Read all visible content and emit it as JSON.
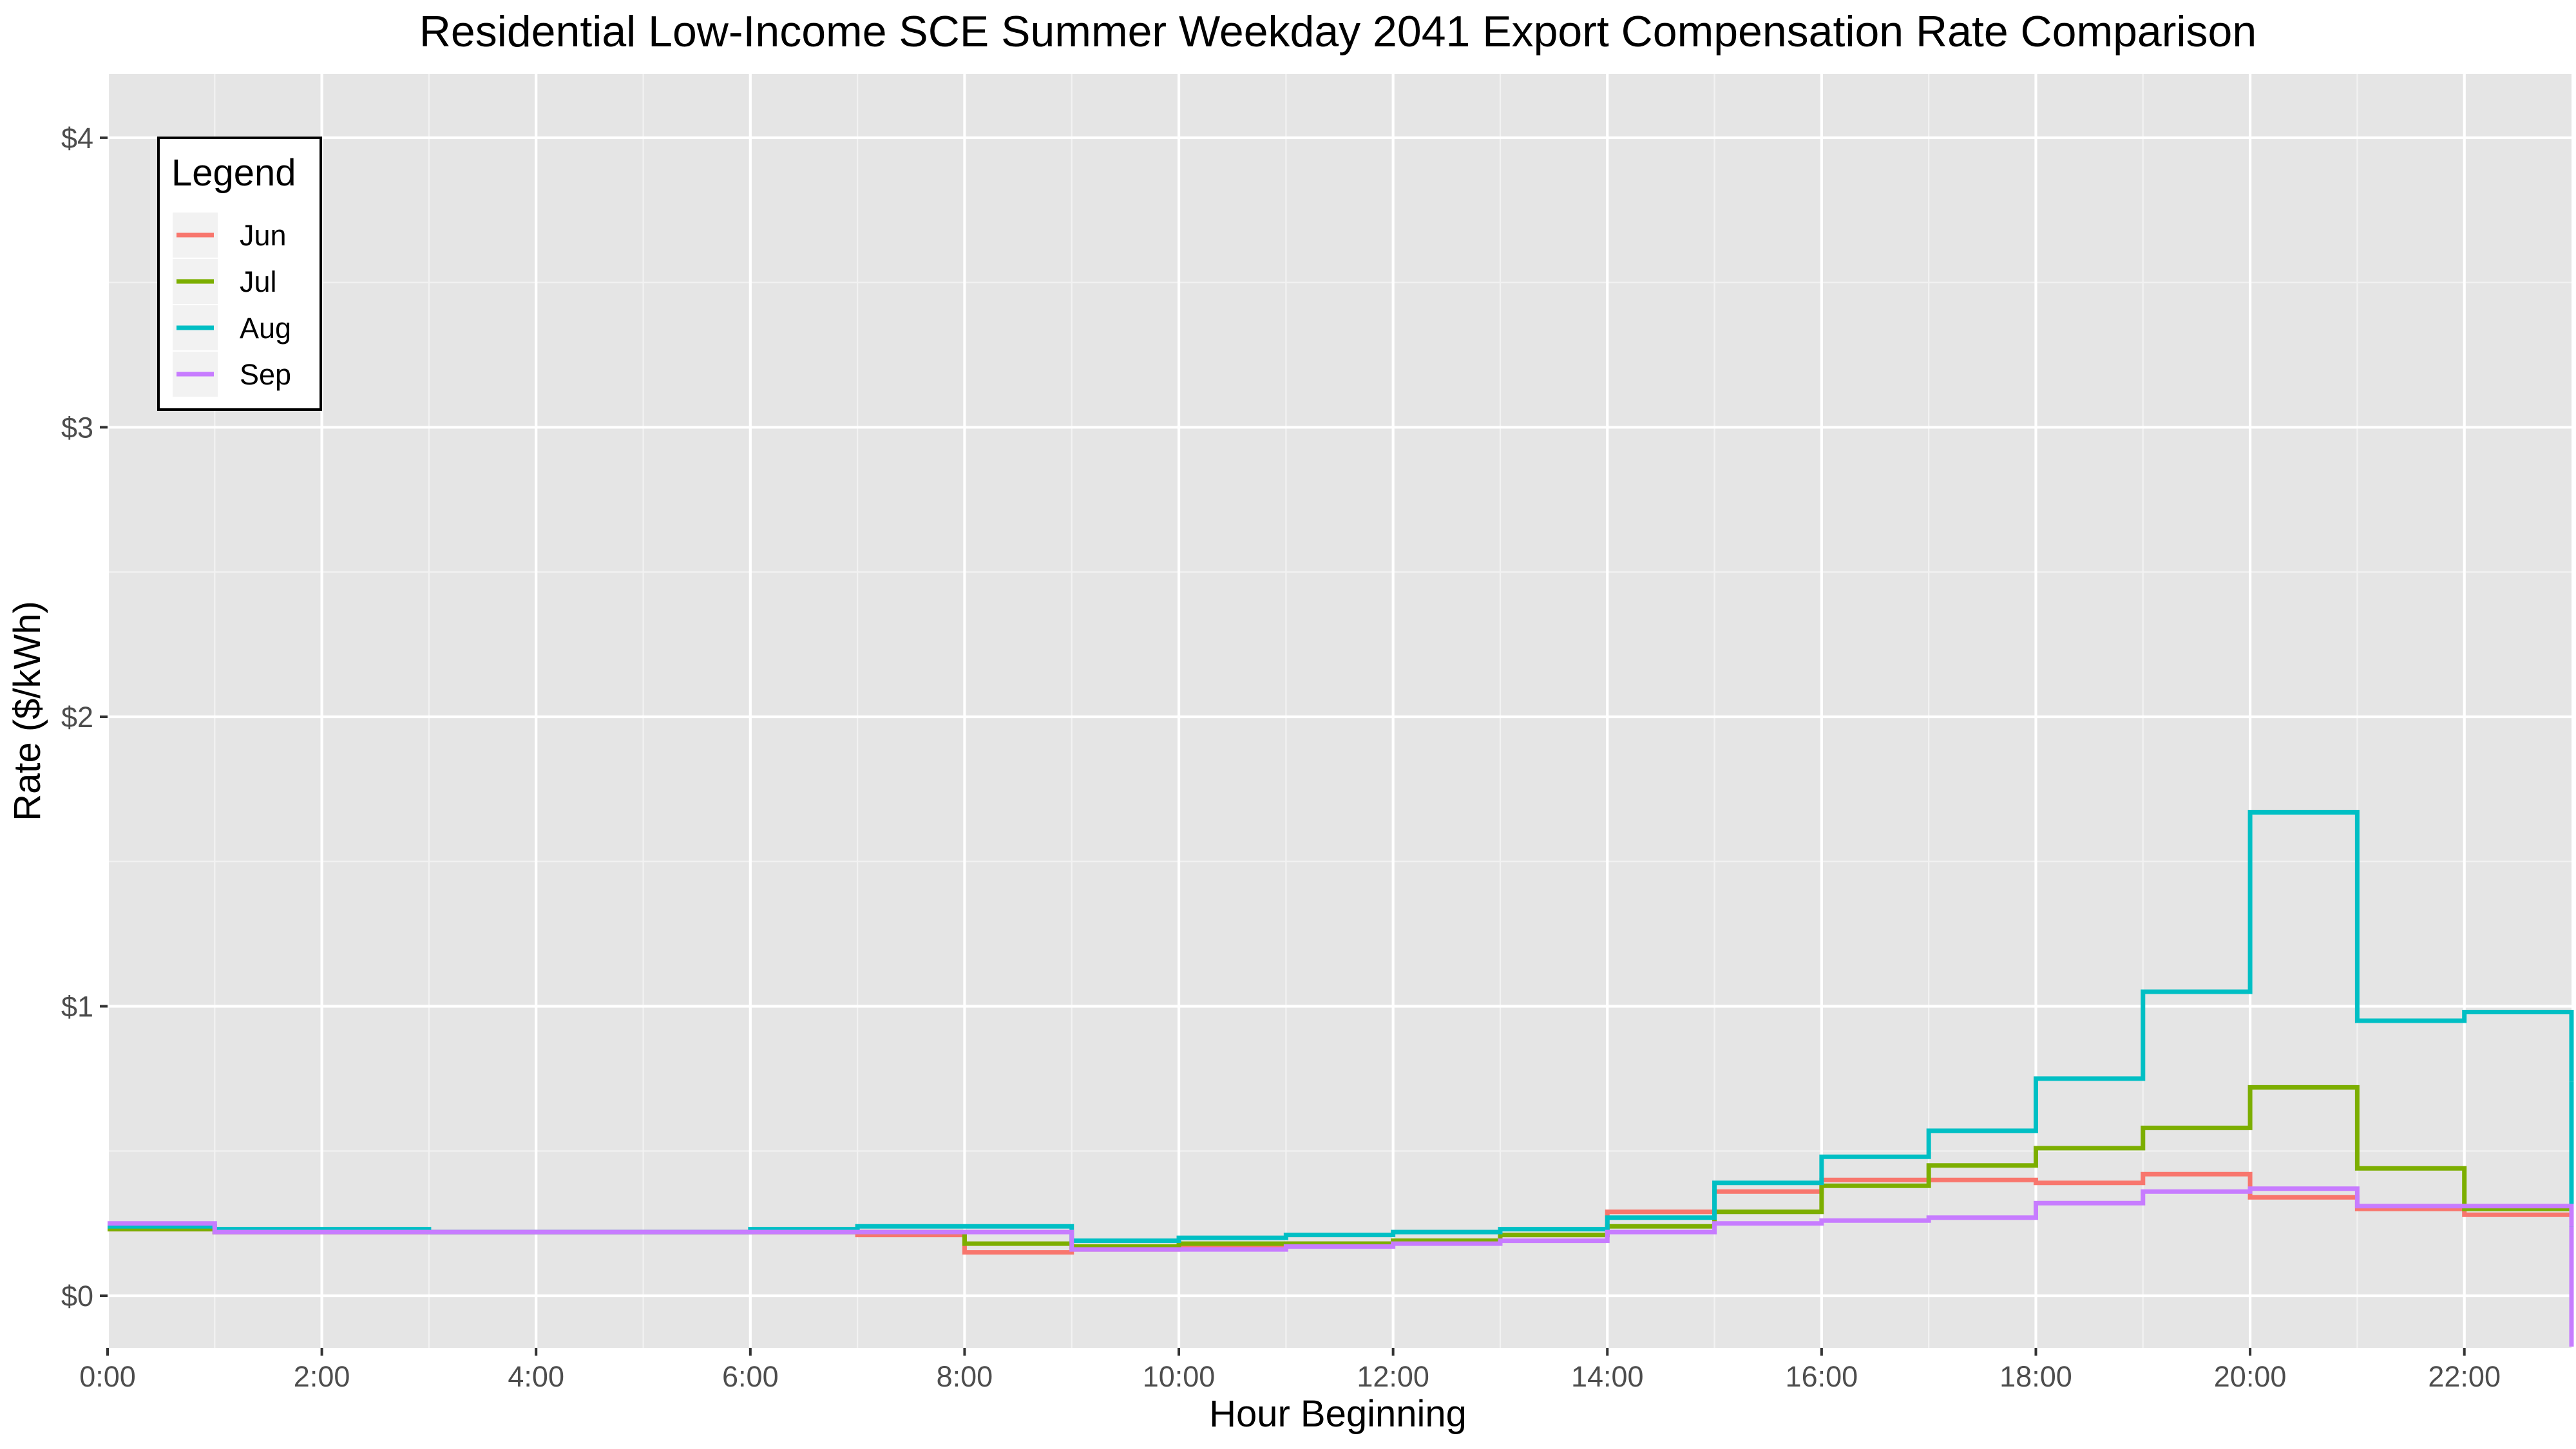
{
  "chart_data": {
    "type": "line",
    "step": true,
    "title": "Residential Low-Income SCE Summer Weekday 2041 Export Compensation Rate Comparison",
    "xlabel": "Hour Beginning",
    "ylabel": "Rate ($/kWh)",
    "xlim": [
      0,
      23
    ],
    "ylim": [
      -0.18,
      4.22
    ],
    "x": [
      0,
      1,
      2,
      3,
      4,
      5,
      6,
      7,
      8,
      9,
      10,
      11,
      12,
      13,
      14,
      15,
      16,
      17,
      18,
      19,
      20,
      21,
      22,
      23
    ],
    "x_tick_values": [
      0,
      2,
      4,
      6,
      8,
      10,
      12,
      14,
      16,
      18,
      20,
      22
    ],
    "x_tick_labels": [
      "0:00",
      "2:00",
      "4:00",
      "6:00",
      "8:00",
      "10:00",
      "12:00",
      "14:00",
      "16:00",
      "18:00",
      "20:00",
      "22:00"
    ],
    "y_tick_values": [
      0,
      1,
      2,
      3,
      4
    ],
    "y_tick_labels": [
      "$0",
      "$1",
      "$2",
      "$3",
      "$4"
    ],
    "grid": true,
    "background": "#e5e5e5",
    "legend": {
      "title": "Legend",
      "position": "top-left"
    },
    "series": [
      {
        "name": "Jun",
        "color": "#f8766d",
        "values": [
          0.23,
          0.22,
          0.22,
          0.22,
          0.22,
          0.22,
          0.22,
          0.21,
          0.15,
          0.16,
          0.17,
          0.18,
          0.19,
          0.21,
          0.29,
          0.36,
          0.4,
          0.4,
          0.39,
          0.42,
          0.34,
          0.3,
          0.28,
          0.25
        ]
      },
      {
        "name": "Jul",
        "color": "#7cae00",
        "values": [
          0.23,
          0.22,
          0.22,
          0.22,
          0.22,
          0.22,
          0.22,
          0.22,
          0.18,
          0.17,
          0.18,
          0.18,
          0.19,
          0.21,
          0.24,
          0.29,
          0.38,
          0.45,
          0.51,
          0.58,
          0.72,
          0.44,
          0.3,
          0.3
        ]
      },
      {
        "name": "Aug",
        "color": "#00bfc4",
        "values": [
          0.24,
          0.23,
          0.23,
          0.22,
          0.22,
          0.22,
          0.23,
          0.24,
          0.24,
          0.19,
          0.2,
          0.21,
          0.22,
          0.23,
          0.27,
          0.39,
          0.48,
          0.57,
          0.75,
          1.05,
          1.67,
          0.95,
          0.98,
          0.74
        ]
      },
      {
        "name": "Sep",
        "color": "#c77cff",
        "values": [
          0.25,
          0.22,
          0.22,
          0.22,
          0.22,
          0.22,
          0.22,
          0.22,
          0.22,
          0.16,
          0.16,
          0.17,
          0.18,
          0.19,
          0.22,
          0.25,
          0.26,
          0.27,
          0.32,
          0.36,
          0.37,
          0.31,
          0.31,
          0.24
        ]
      }
    ]
  }
}
